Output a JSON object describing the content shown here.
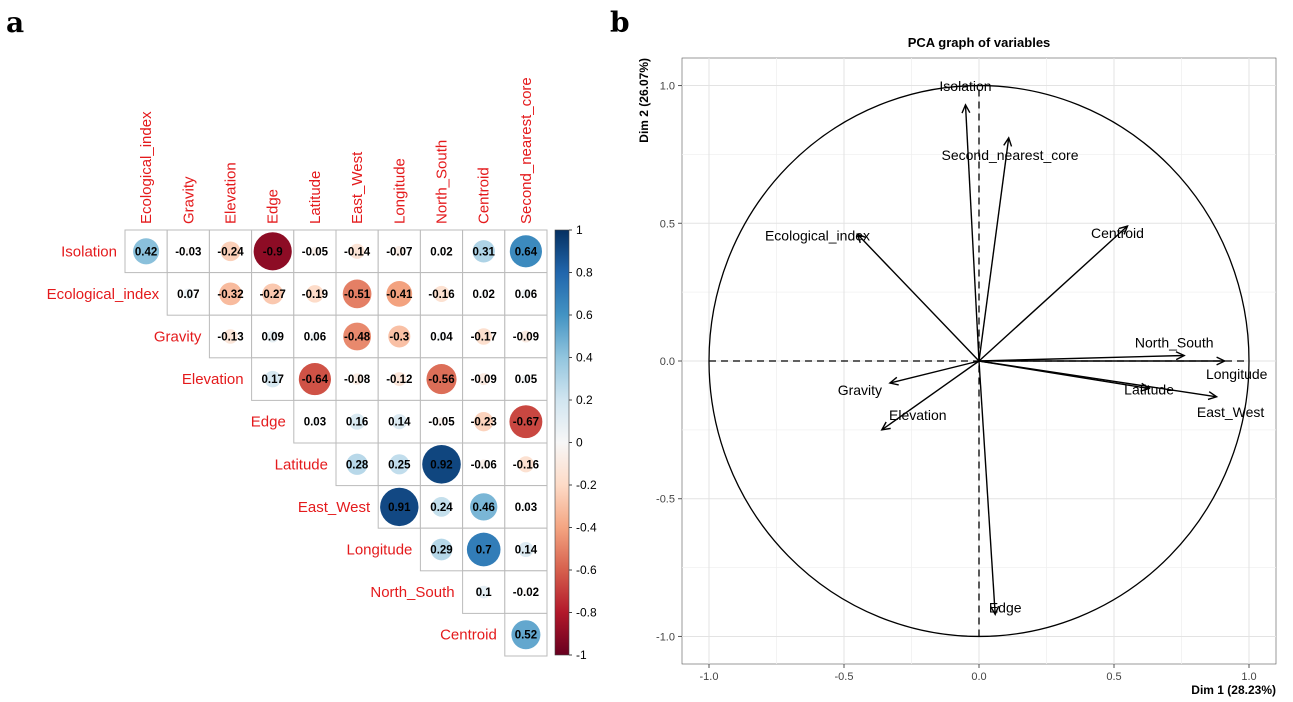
{
  "panel_labels": {
    "a": "a",
    "b": "b"
  },
  "colors": {
    "red_label": "#e41a1c",
    "negative": "#67001f",
    "positive": "#053061"
  },
  "chart_data": [
    {
      "type": "heatmap",
      "row_variables": [
        "Isolation",
        "Ecological_index",
        "Gravity",
        "Elevation",
        "Edge",
        "Latitude",
        "East_West",
        "Longitude",
        "North_South",
        "Centroid"
      ],
      "col_variables": [
        "Ecological_index",
        "Gravity",
        "Elevation",
        "Edge",
        "Latitude",
        "East_West",
        "Longitude",
        "North_South",
        "Centroid",
        "Second_nearest_core"
      ],
      "matrix": [
        [
          0.42,
          -0.03,
          -0.24,
          -0.9,
          -0.05,
          -0.14,
          -0.07,
          0.02,
          0.31,
          0.64
        ],
        [
          null,
          0.07,
          -0.32,
          -0.27,
          -0.19,
          -0.51,
          -0.41,
          -0.16,
          0.02,
          0.06
        ],
        [
          null,
          null,
          -0.13,
          0.09,
          0.06,
          -0.48,
          -0.3,
          0.04,
          -0.17,
          -0.09
        ],
        [
          null,
          null,
          null,
          0.17,
          -0.64,
          -0.08,
          -0.12,
          -0.56,
          -0.09,
          0.05
        ],
        [
          null,
          null,
          null,
          null,
          0.03,
          0.16,
          0.14,
          -0.05,
          -0.23,
          -0.67
        ],
        [
          null,
          null,
          null,
          null,
          null,
          0.28,
          0.25,
          0.92,
          -0.06,
          -0.16
        ],
        [
          null,
          null,
          null,
          null,
          null,
          null,
          0.91,
          0.24,
          0.46,
          0.03
        ],
        [
          null,
          null,
          null,
          null,
          null,
          null,
          null,
          0.29,
          0.7,
          0.14
        ],
        [
          null,
          null,
          null,
          null,
          null,
          null,
          null,
          null,
          0.1,
          -0.02
        ],
        [
          null,
          null,
          null,
          null,
          null,
          null,
          null,
          null,
          null,
          0.52
        ]
      ],
      "labels": [
        [
          "0.42",
          "-0.03",
          "-0.24",
          "-0.9",
          "-0.05",
          "-0.14",
          "-0.07",
          "0.02",
          "0.31",
          "0.64"
        ],
        [
          null,
          "0.07",
          "-0.32",
          "-0.27",
          "-0.19",
          "-0.51",
          "-0.41",
          "-0.16",
          "0.02",
          "0.06"
        ],
        [
          null,
          null,
          "-0.13",
          "0.09",
          "0.06",
          "-0.48",
          "-0.3",
          "0.04",
          "-0.17",
          "-0.09"
        ],
        [
          null,
          null,
          null,
          "0.17",
          "-0.64",
          "-0.08",
          "-0.12",
          "-0.56",
          "-0.09",
          "0.05"
        ],
        [
          null,
          null,
          null,
          null,
          "0.03",
          "0.16",
          "0.14",
          "-0.05",
          "-0.23",
          "-0.67"
        ],
        [
          null,
          null,
          null,
          null,
          null,
          "0.28",
          "0.25",
          "0.92",
          "-0.06",
          "-0.16"
        ],
        [
          null,
          null,
          null,
          null,
          null,
          null,
          "0.91",
          "0.24",
          "0.46",
          "0.03"
        ],
        [
          null,
          null,
          null,
          null,
          null,
          null,
          null,
          "0.29",
          "0.7",
          "0.14"
        ],
        [
          null,
          null,
          null,
          null,
          null,
          null,
          null,
          null,
          "0.1",
          "-0.02"
        ],
        [
          null,
          null,
          null,
          null,
          null,
          null,
          null,
          null,
          null,
          "0.52"
        ]
      ],
      "colorbar": {
        "range": [
          -1,
          1
        ],
        "ticks": [
          "1",
          "0.8",
          "0.6",
          "0.4",
          "0.2",
          "0",
          "-0.2",
          "-0.4",
          "-0.6",
          "-0.8",
          "-1"
        ]
      }
    },
    {
      "type": "scatter",
      "title": "PCA graph of variables",
      "xlabel": "Dim 1 (28.23%)",
      "ylabel": "Dim 2 (26.07%)",
      "xlim": [
        -1.1,
        1.1
      ],
      "ylim": [
        -1.1,
        1.1
      ],
      "xticks": [
        -1.0,
        -0.5,
        0.0,
        0.5,
        1.0
      ],
      "yticks": [
        -1.0,
        -0.5,
        0.0,
        0.5,
        1.0
      ],
      "xtick_labels": [
        "-1.0",
        "-0.5",
        "0.0",
        "0.5",
        "1.0"
      ],
      "ytick_labels": [
        "-1.0",
        "-0.5",
        "0.0",
        "0.5",
        "1.0"
      ],
      "grid": true,
      "unit_circle": true,
      "arrows": [
        {
          "name": "Isolation",
          "x": -0.05,
          "y": 0.93
        },
        {
          "name": "Second_nearest_core",
          "x": 0.11,
          "y": 0.81
        },
        {
          "name": "Ecological_index",
          "x": -0.45,
          "y": 0.46
        },
        {
          "name": "Centroid",
          "x": 0.55,
          "y": 0.49
        },
        {
          "name": "North_South",
          "x": 0.76,
          "y": 0.02
        },
        {
          "name": "Longitude",
          "x": 0.91,
          "y": 0.0
        },
        {
          "name": "Latitude",
          "x": 0.63,
          "y": -0.1
        },
        {
          "name": "East_West",
          "x": 0.88,
          "y": -0.13
        },
        {
          "name": "Gravity",
          "x": -0.33,
          "y": -0.08
        },
        {
          "name": "Elevation",
          "x": -0.36,
          "y": -0.25
        },
        {
          "name": "Edge",
          "x": 0.06,
          "y": -0.92
        }
      ]
    }
  ]
}
